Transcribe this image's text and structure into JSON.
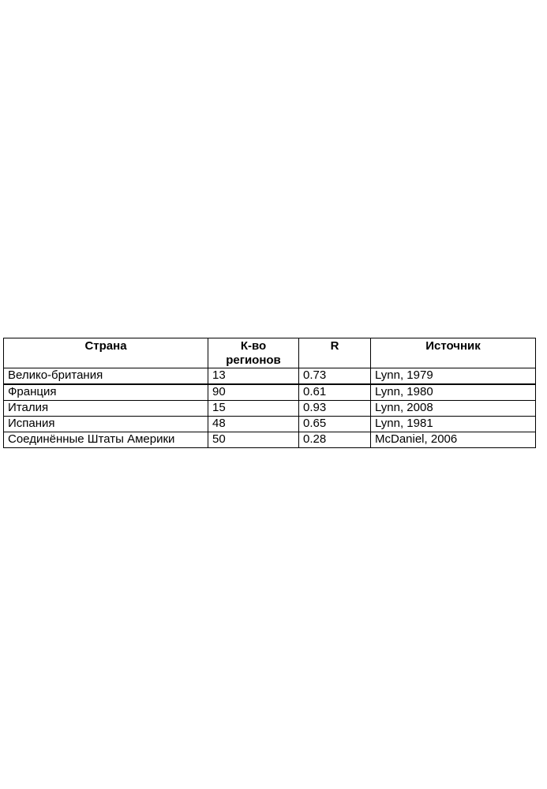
{
  "page": {
    "background": "#ffffff",
    "text_color": "#000000",
    "border_color": "#000000"
  },
  "table": {
    "columns": [
      {
        "label": "Страна"
      },
      {
        "label": "К-во регионов"
      },
      {
        "label": "R"
      },
      {
        "label": "Источник"
      }
    ],
    "rows": [
      {
        "country": "Велико-британия",
        "regions": "13",
        "r": "0.73",
        "source": "Lynn, 1979"
      },
      {
        "country": "Франция",
        "regions": "90",
        "r": "0.61",
        "source": "Lynn, 1980"
      },
      {
        "country": "Италия",
        "regions": "15",
        "r": "0.93",
        "source": "Lynn, 2008"
      },
      {
        "country": "Испания",
        "regions": "48",
        "r": "0.65",
        "source": "Lynn, 1981"
      },
      {
        "country": "Соединённые Штаты Америки",
        "regions": "50",
        "r": "0.28",
        "source": "McDaniel, 2006"
      }
    ]
  },
  "chart_data": {
    "type": "table",
    "title": "",
    "columns": [
      "Страна",
      "К-во регионов",
      "R",
      "Источник"
    ],
    "rows": [
      [
        "Велико-британия",
        13,
        0.73,
        "Lynn, 1979"
      ],
      [
        "Франция",
        90,
        0.61,
        "Lynn, 1980"
      ],
      [
        "Италия",
        15,
        0.93,
        "Lynn, 2008"
      ],
      [
        "Испания",
        48,
        0.65,
        "Lynn, 1981"
      ],
      [
        "Соединённые Штаты Америки",
        50,
        0.28,
        "McDaniel, 2006"
      ]
    ]
  }
}
